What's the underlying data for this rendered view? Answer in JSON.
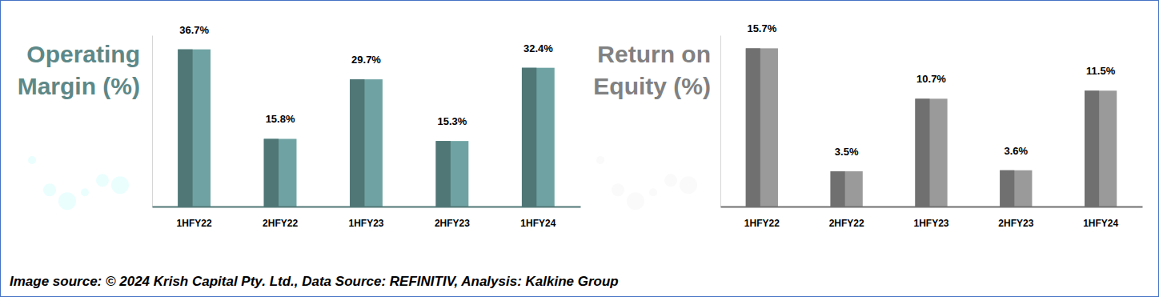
{
  "chart_data": [
    {
      "type": "bar",
      "title": "Operating Margin (%)",
      "categories": [
        "1HFY22",
        "2HFY22",
        "1HFY23",
        "2HFY23",
        "1HFY24"
      ],
      "values": [
        36.7,
        15.8,
        29.7,
        15.3,
        32.4
      ],
      "value_labels": [
        "36.7%",
        "15.8%",
        "29.7%",
        "15.3%",
        "32.4%"
      ],
      "color": "#6fa3a3",
      "ylim": [
        0,
        40
      ],
      "data_labels": true,
      "tick_labels": "x"
    },
    {
      "type": "bar",
      "title": "Return on Equity (%)",
      "categories": [
        "1HFY22",
        "2HFY22",
        "1HFY23",
        "2HFY23",
        "1HFY24"
      ],
      "values": [
        15.7,
        3.5,
        10.7,
        3.6,
        11.5
      ],
      "value_labels": [
        "15.7%",
        "3.5%",
        "10.7%",
        "3.6%",
        "11.5%"
      ],
      "color": "#9a9a9a",
      "ylim": [
        0,
        17
      ],
      "data_labels": true,
      "tick_labels": "x"
    }
  ],
  "caption": "Image source: © 2024 Krish Capital Pty. Ltd., Data Source: REFINITIV, Analysis: Kalkine Group"
}
